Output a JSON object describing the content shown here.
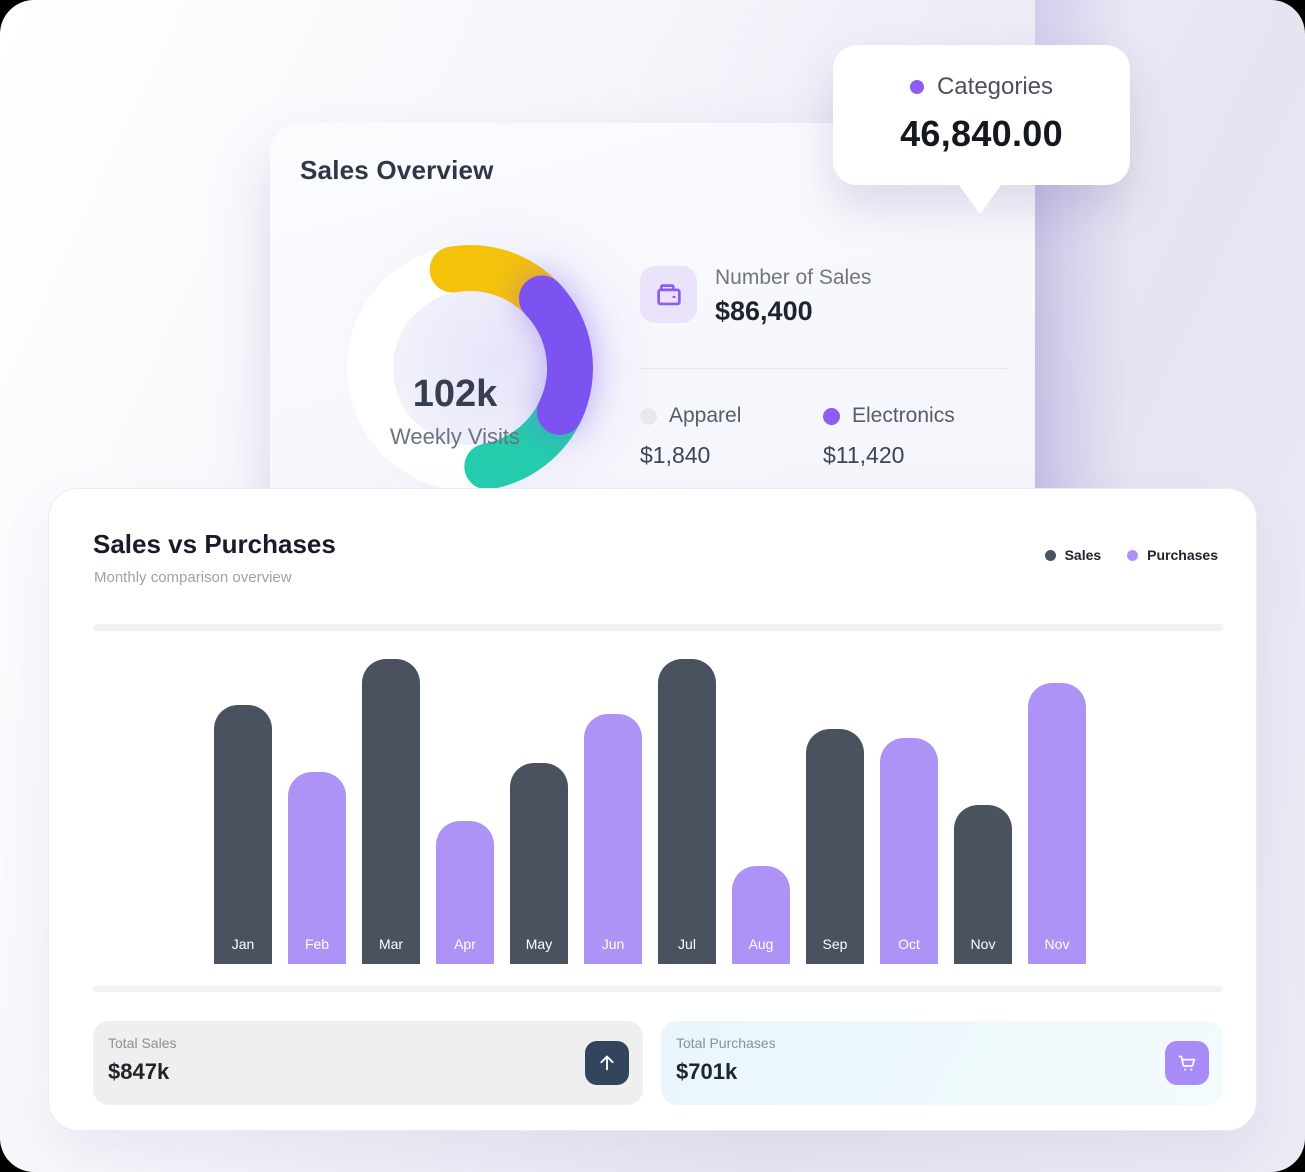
{
  "tooltip": {
    "label": "Categories",
    "value": "46,840.00",
    "dot_color": "#8b5cf6"
  },
  "sales_overview": {
    "title": "Sales Overview",
    "gauge": {
      "value": "102k",
      "caption": "Weekly Visits",
      "segment_colors": {
        "yellow": "#f5c20b",
        "purple": "#7c52f0",
        "teal": "#26ccae",
        "track": "#ffffff"
      }
    },
    "number_of_sales": {
      "label": "Number of Sales",
      "value": "$86,400"
    },
    "categories": [
      {
        "label": "Apparel",
        "value": "$1,840",
        "dot_color": "#e8e8ee"
      },
      {
        "label": "Electronics",
        "value": "$11,420",
        "dot_color": "#8b5cf6"
      }
    ]
  },
  "sales_vs_purchases": {
    "title": "Sales vs Purchases",
    "subtitle": "Monthly comparison overview",
    "legend": [
      {
        "label": "Sales",
        "color": "#4a5260"
      },
      {
        "label": "Purchases",
        "color": "#ad93f6"
      }
    ],
    "totals": {
      "sales": {
        "label": "Total Sales",
        "value": "$847k",
        "button_color": "#33455c"
      },
      "purchases": {
        "label": "Total Purchases",
        "value": "$701k",
        "button_color": "#a78cf8"
      }
    }
  },
  "chart_data": {
    "type": "bar",
    "title": "Sales vs Purchases",
    "subtitle": "Monthly comparison overview",
    "categories": [
      "Jan",
      "Feb",
      "Mar",
      "Apr",
      "May",
      "Jun",
      "Jul",
      "Aug",
      "Sep",
      "Oct",
      "Nov",
      "Nov"
    ],
    "series_colors": {
      "Sales": "#4a5260",
      "Purchases": "#ad93f6"
    },
    "bars": [
      {
        "month": "Jan",
        "series": "Sales",
        "value": 85
      },
      {
        "month": "Feb",
        "series": "Purchases",
        "value": 63
      },
      {
        "month": "Mar",
        "series": "Sales",
        "value": 100
      },
      {
        "month": "Apr",
        "series": "Purchases",
        "value": 47
      },
      {
        "month": "May",
        "series": "Sales",
        "value": 66
      },
      {
        "month": "Jun",
        "series": "Purchases",
        "value": 82
      },
      {
        "month": "Jul",
        "series": "Sales",
        "value": 100
      },
      {
        "month": "Aug",
        "series": "Purchases",
        "value": 32
      },
      {
        "month": "Sep",
        "series": "Sales",
        "value": 77
      },
      {
        "month": "Oct",
        "series": "Purchases",
        "value": 74
      },
      {
        "month": "Nov",
        "series": "Sales",
        "value": 52
      },
      {
        "month": "Nov",
        "series": "Purchases",
        "value": 92
      }
    ],
    "value_unit": "percent_of_tallest_bar",
    "ylim": [
      0,
      100
    ],
    "grid": false,
    "legend_position": "top-right",
    "xlabel": "",
    "ylabel": ""
  }
}
